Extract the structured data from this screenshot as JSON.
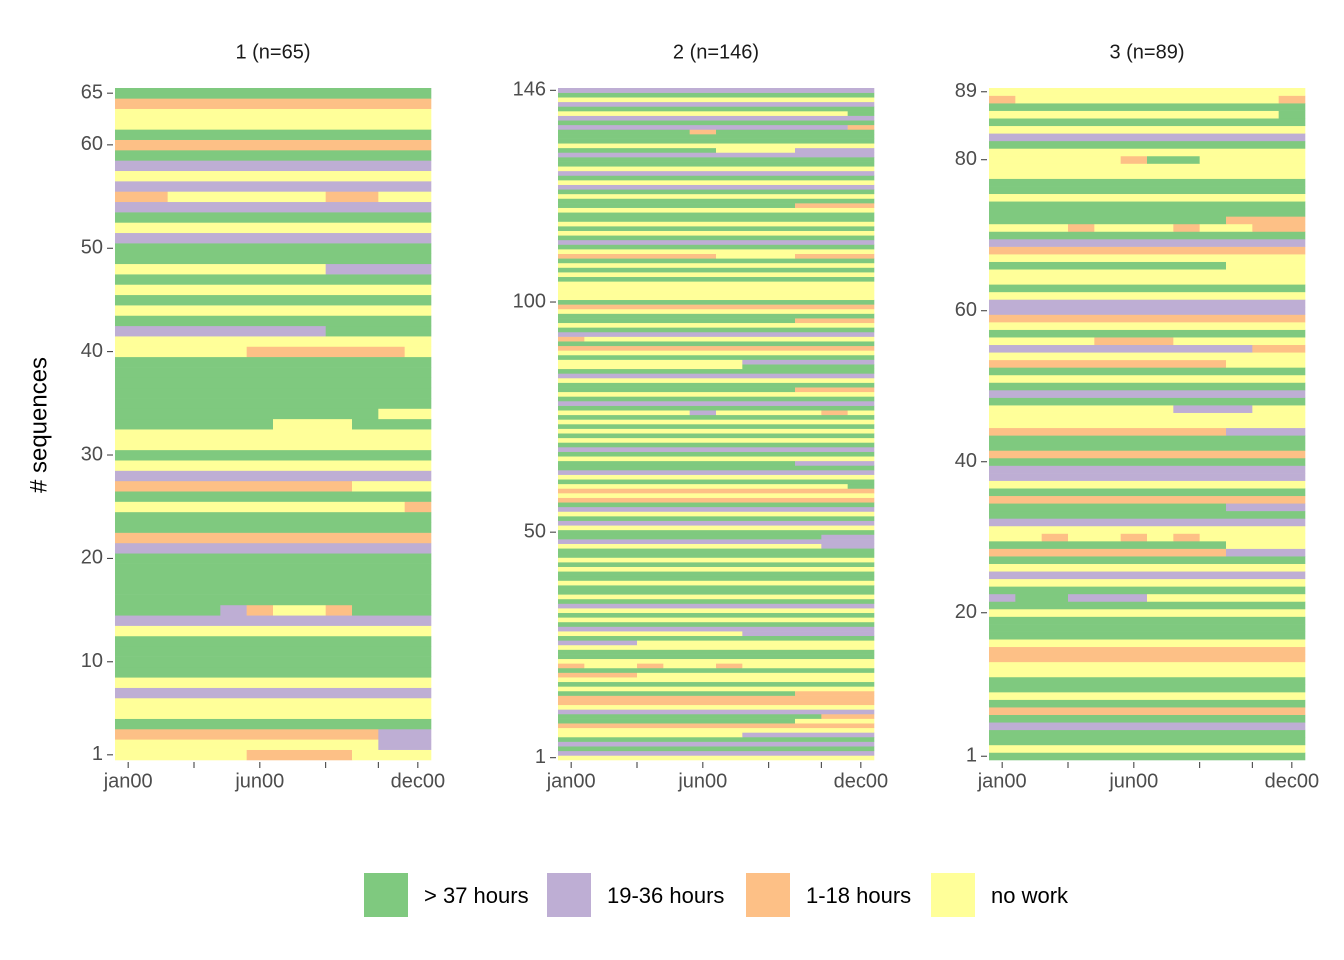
{
  "chart_data": [
    {
      "type": "sequence",
      "title": "1 (n=65)",
      "y_label": "# sequences",
      "categories": [
        "jan00",
        null,
        null,
        null,
        null,
        "jun00",
        null,
        null,
        null,
        null,
        null,
        "dec00"
      ],
      "ylim": [
        0.5,
        65.5
      ],
      "yticks": [
        1,
        10,
        20,
        30,
        40,
        50,
        60,
        65
      ],
      "sequences": [
        "333332222333",
        "333333333311",
        "222222222211",
        "000000000000",
        "333333333333",
        "333333333333",
        "111111111111",
        "333333333333",
        "000000000000",
        "000000000000",
        "000000000000",
        "000000000000",
        "333333333333",
        "111111111111",
        "000012332000",
        "000000000000",
        "000000000000",
        "000000000000",
        "000000000000",
        "000000000000",
        "111111111111",
        "222222222222",
        "000000000000",
        "000000000000",
        "333333333332",
        "000000000000",
        "222222222333",
        "111111111111",
        "333333333333",
        "000000000000",
        "333333333333",
        "333333333333",
        "000000333000",
        "000000000033",
        "000000000000",
        "000000000000",
        "000000000000",
        "000000000000",
        "000000000000",
        "333332222223",
        "333333333333",
        "111111110000",
        "000000000000",
        "333333333333",
        "000000000000",
        "333333333333",
        "000000000000",
        "333333331111",
        "000000000000",
        "000000000000",
        "111111111111",
        "333333333333",
        "000000000000",
        "111111111111",
        "223333332233",
        "111111111111",
        "333333333333",
        "111111111111",
        "000000000000",
        "222222222222",
        "000000000000",
        "333333333333",
        "333333333333",
        "222222222222",
        "000000000000"
      ]
    },
    {
      "type": "sequence",
      "title": "2 (n=146)",
      "categories": [
        "jan00",
        null,
        null,
        null,
        null,
        "jun00",
        null,
        null,
        null,
        null,
        null,
        "dec00"
      ],
      "ylim": [
        0.5,
        146.5
      ],
      "yticks": [
        1,
        50,
        100,
        146
      ],
      "sequences": [
        "333333333333",
        "111111111111",
        "000000000000",
        "111111111111",
        "000000000000",
        "333333311111",
        "333333333333",
        "222222222222",
        "000000000333",
        "000000000022",
        "111111111111",
        "333333333333",
        "222222222222",
        "222222222222",
        "000000000222",
        "333333333333",
        "000000000000",
        "333333333333",
        "222333333333",
        "000000000000",
        "233233233333",
        "333333333333",
        "000000000000",
        "000000000000",
        "333333333333",
        "111333333333",
        "000000000000",
        "333333311111",
        "111111111111",
        "000000000000",
        "333333333333",
        "000000000000",
        "333333333333",
        "111111111111",
        "000000000000",
        "333333333333",
        "000000000000",
        "000000000000",
        "333333333333",
        "000000000000",
        "000000000000",
        "333333333333",
        "000000000000",
        "333333333333",
        "000000000000",
        "000000000000",
        "333333333311",
        "111111111111",
        "000000000011",
        "000000000000",
        "333333333333",
        "111111111111",
        "000000000000",
        "333333333333",
        "111111111111",
        "000000000000",
        "222222222222",
        "333333333333",
        "222222222222",
        "333333333330",
        "000000000000",
        "333333333333",
        "111111111111",
        "000000000000",
        "000000000111",
        "333333333333",
        "000000000000",
        "111111111111",
        "000000000000",
        "333333333333",
        "000000000000",
        "333333333333",
        "000000000000",
        "333333333333",
        "000000000000",
        "333331333323",
        "000000000000",
        "111111111111",
        "000000000000",
        "333333333333",
        "000000000222",
        "000000000000",
        "333333333333",
        "111111111111",
        "000000000000",
        "333333300000",
        "333333311111",
        "000000000000",
        "333333333333",
        "222222222222",
        "000000000000",
        "233333333333",
        "111111111111",
        "000000000000",
        "333333333333",
        "000000000222",
        "000000000000",
        "333333333333",
        "222222222222",
        "000000000000",
        "333333333333",
        "333333333333",
        "333333333333",
        "333333333333",
        "000000000000",
        "333333333333",
        "000000000000",
        "333333333333",
        "000000000000",
        "222222333222",
        "333333333333",
        "000000000000",
        "111111111111",
        "000000000000",
        "333333333333",
        "000000000000",
        "333333333333",
        "000000000000",
        "000000000000",
        "333333333333",
        "000000000222",
        "000000000000",
        "333333333333",
        "000000000000",
        "111111111111",
        "333333333333",
        "000000000000",
        "111111111111",
        "333333333333",
        "000000000000",
        "000000000000",
        "111111111111",
        "000000333111",
        "333333333333",
        "000000000000",
        "000000000000",
        "000002000000",
        "111111111112",
        "000000000000",
        "111111111111",
        "333333333330",
        "000000000000",
        "111111111111",
        "333333333333",
        "000000000000",
        "111111111111"
      ]
    },
    {
      "type": "sequence",
      "title": "3 (n=89)",
      "categories": [
        "jan00",
        null,
        null,
        null,
        null,
        "jun00",
        null,
        null,
        null,
        null,
        null,
        "dec00"
      ],
      "ylim": [
        0.5,
        89.5
      ],
      "yticks": [
        1,
        20,
        40,
        60,
        80,
        89
      ],
      "sequences": [
        "000000000000",
        "333333333333",
        "000000000000",
        "000000000000",
        "111111111111",
        "000000000000",
        "222222222222",
        "000000000000",
        "333333333333",
        "000000000000",
        "000000000000",
        "333333333333",
        "333333333333",
        "222222222222",
        "222222222222",
        "333333333333",
        "000000000000",
        "000000000000",
        "000000000000",
        "333333333333",
        "000000000000",
        "100111333333",
        "000000000000",
        "333333333333",
        "111111111111",
        "333333333333",
        "000000000000",
        "222222222111",
        "000000000333",
        "332332323333",
        "333333333333",
        "111111111111",
        "000000000000",
        "000000000111",
        "222222222222",
        "000000000000",
        "333333333333",
        "111111111111",
        "111111111111",
        "000000000000",
        "222222222222",
        "000000000000",
        "000000000000",
        "222222222111",
        "333333333333",
        "333333333333",
        "333333311133",
        "000000000000",
        "111111111111",
        "000000000000",
        "333333333333",
        "000000000000",
        "222222222333",
        "333333333333",
        "111111111122",
        "333322233333",
        "000000000000",
        "333333333333",
        "222222222222",
        "111111111111",
        "111111111111",
        "333333333333",
        "000000000000",
        "333333333333",
        "333333333333",
        "000000000333",
        "333333333333",
        "222222222222",
        "111111111111",
        "000000000000",
        "333233323322",
        "000000000222",
        "000000000000",
        "000000000000",
        "333333333333",
        "000000000000",
        "000000000000",
        "333333333333",
        "333333333333",
        "333332003333",
        "333333333333",
        "000000000000",
        "111111111111",
        "333333333333",
        "000000000000",
        "333333333330",
        "000000000000",
        "233333333332",
        "333333333333"
      ]
    }
  ],
  "legend": {
    "states": [
      {
        "name": "> 37 hours",
        "color": "#7fc97f"
      },
      {
        "name": "19-36 hours",
        "color": "#beaed4"
      },
      {
        "name": "1-18 hours",
        "color": "#fdc086"
      },
      {
        "name": "no work",
        "color": "#ffff99"
      }
    ]
  }
}
